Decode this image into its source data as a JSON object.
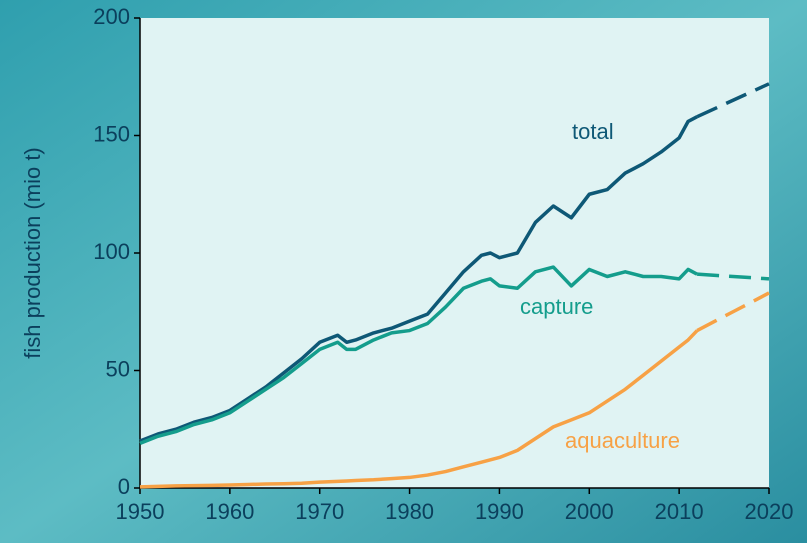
{
  "chart_data": {
    "type": "line",
    "ylabel": "fish production (mio t)",
    "x": [
      1950,
      1952,
      1954,
      1956,
      1958,
      1960,
      1962,
      1964,
      1966,
      1968,
      1970,
      1972,
      1973,
      1974,
      1976,
      1978,
      1980,
      1982,
      1984,
      1986,
      1988,
      1989,
      1990,
      1992,
      1994,
      1996,
      1998,
      2000,
      2002,
      2004,
      2006,
      2008,
      2010,
      2011,
      2012,
      2016,
      2020
    ],
    "series": [
      {
        "name": "total",
        "color": "#0e5876",
        "projection_from": 2012,
        "values": [
          20,
          23,
          25,
          28,
          30,
          33,
          38,
          43,
          49,
          55,
          62,
          65,
          62,
          63,
          66,
          68,
          71,
          74,
          83,
          92,
          99,
          100,
          98,
          100,
          113,
          120,
          115,
          125,
          127,
          134,
          138,
          143,
          149,
          156,
          158,
          165,
          172
        ]
      },
      {
        "name": "capture",
        "color": "#149d8c",
        "projection_from": 2012,
        "values": [
          19,
          22,
          24,
          27,
          29,
          32,
          37,
          42,
          47,
          53,
          59,
          62,
          59,
          59,
          63,
          66,
          67,
          70,
          77,
          85,
          88,
          89,
          86,
          85,
          92,
          94,
          86,
          93,
          90,
          92,
          90,
          90,
          89,
          93,
          91,
          90,
          89
        ]
      },
      {
        "name": "aquaculture",
        "color": "#f7a145",
        "projection_from": 2012,
        "values": [
          0.5,
          0.7,
          0.9,
          1,
          1.1,
          1.3,
          1.5,
          1.7,
          1.8,
          2,
          2.5,
          2.8,
          3,
          3.2,
          3.5,
          4,
          4.5,
          5.5,
          7,
          9,
          11,
          12,
          13,
          16,
          21,
          26,
          29,
          32,
          37,
          42,
          48,
          54,
          60,
          63,
          67,
          75,
          83
        ]
      }
    ],
    "xlim": [
      1950,
      2020
    ],
    "xticks": [
      1950,
      1960,
      1970,
      1980,
      1990,
      2000,
      2010,
      2020
    ],
    "ylim": [
      0,
      200
    ],
    "yticks": [
      0,
      50,
      100,
      150,
      200
    ],
    "grid": false
  }
}
